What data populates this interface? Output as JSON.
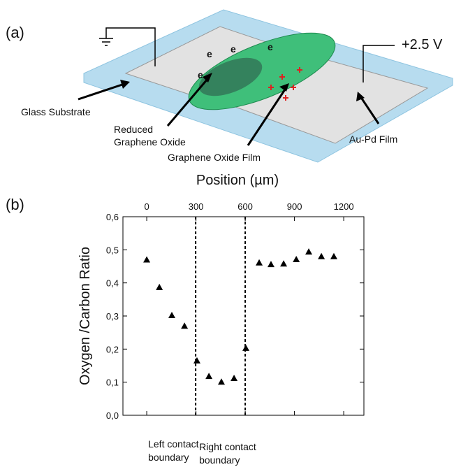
{
  "panel_labels": [
    "(a)",
    "(b)"
  ],
  "diagram": {
    "voltage": "+2.5 V",
    "glass": "Glass Substrate",
    "reduced": [
      "Reduced",
      "Graphene Oxide"
    ],
    "film": "Graphene Oxide Film",
    "electrode": "Au-Pd Film",
    "electrons": [
      "e",
      "e",
      "e",
      "e"
    ]
  },
  "chart_data": {
    "type": "scatter",
    "xlabel": "Position (µm)",
    "ylabel": "Oxygen /Carbon Ratio",
    "x": [
      0,
      77,
      153,
      230,
      306,
      379,
      455,
      532,
      604,
      685,
      757,
      834,
      911,
      987,
      1064,
      1140
    ],
    "values": [
      0.47,
      0.387,
      0.302,
      0.27,
      0.165,
      0.118,
      0.101,
      0.112,
      0.203,
      0.461,
      0.456,
      0.458,
      0.471,
      0.494,
      0.48,
      0.48
    ],
    "color": "#000000",
    "xlim": [
      -145,
      1323
    ],
    "ylim": [
      0,
      0.6
    ],
    "xticks": [
      0,
      300,
      600,
      900,
      1200
    ],
    "yticks": [
      {
        "value": 0,
        "label": "0,0"
      },
      {
        "value": 0.1,
        "label": "0,1"
      },
      {
        "value": 0.2,
        "label": "0,2"
      },
      {
        "value": 0.3,
        "label": "0,3"
      },
      {
        "value": 0.4,
        "label": "0,4"
      },
      {
        "value": 0.5,
        "label": "0,5"
      },
      {
        "value": 0.6,
        "label": "0,6"
      }
    ],
    "boundaries": [
      {
        "x": 298,
        "label": [
          "Left contact",
          "boundary"
        ]
      },
      {
        "x": 600,
        "label": [
          "Right contact",
          "boundary"
        ]
      }
    ]
  }
}
